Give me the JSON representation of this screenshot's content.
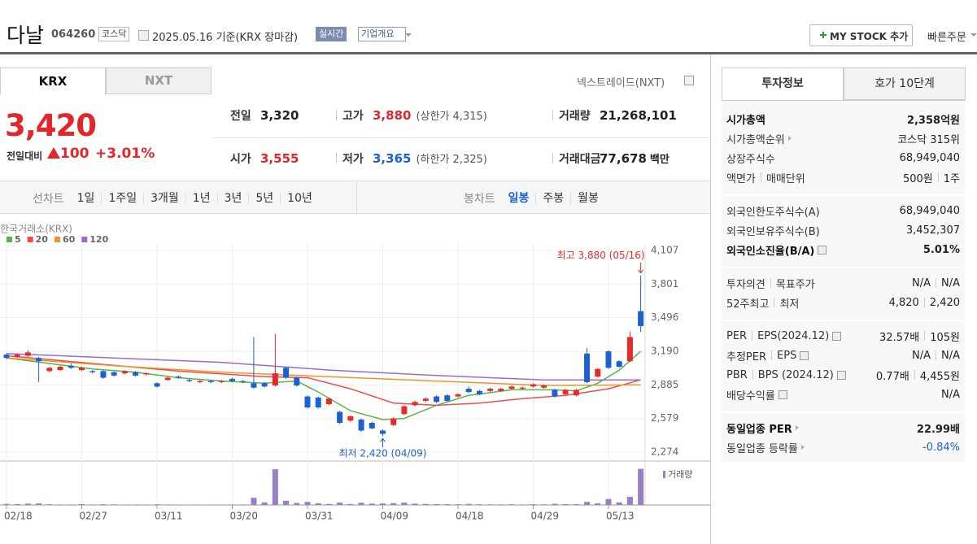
{
  "header": {
    "name": "다날",
    "code": "064260",
    "market": "코스닥",
    "date": "2025.05.16 기준(KRX 장마감)",
    "realtime": "실시간",
    "overview": "기업개요",
    "my_stock": "MY STOCK 추가",
    "quick_order": "빠른주문"
  },
  "market_tabs": [
    "KRX",
    "NXT"
  ],
  "nxt_link": "넥스트레이드(NXT)",
  "price": {
    "current": "3,420",
    "change_label": "전일대비",
    "change": "100",
    "rate": "+3.01%"
  },
  "quotes": [
    {
      "label": "전일",
      "value": "3,320"
    },
    {
      "label": "고가",
      "value": "3,880",
      "color": "#e3262a",
      "limit": "(상한가 4,315)"
    },
    {
      "label": "거래량",
      "value": "21,268,101"
    },
    {
      "label": "시가",
      "value": "3,555",
      "color": "#e3262a"
    },
    {
      "label": "저가",
      "value": "3,365",
      "color": "#1b61d1",
      "limit": "(하한가 2,325)"
    },
    {
      "label": "거래대금",
      "value": "77,678",
      "unit": "백만"
    }
  ],
  "period": {
    "line_label": "선차트",
    "line_items": [
      "1일",
      "1주일",
      "3개월",
      "1년",
      "3년",
      "5년",
      "10년"
    ],
    "candle_label": "봉차트",
    "candle_items": [
      "일봉",
      "주봉",
      "월봉"
    ]
  },
  "chart_data": {
    "type": "candlestick",
    "source": "한국거래소(KRX)",
    "categories": [
      "02/18",
      null,
      null,
      null,
      null,
      null,
      null,
      "02/27",
      null,
      null,
      null,
      null,
      null,
      null,
      "03/11",
      null,
      null,
      null,
      null,
      null,
      null,
      "03/20",
      null,
      null,
      null,
      null,
      null,
      null,
      "03/31",
      null,
      null,
      null,
      null,
      null,
      null,
      "04/09",
      null,
      null,
      null,
      null,
      null,
      null,
      "04/18",
      null,
      null,
      null,
      null,
      null,
      null,
      "04/29",
      null,
      null,
      null,
      null,
      null,
      null,
      "05/13",
      null,
      null,
      null
    ],
    "open": [
      3160,
      3140,
      3150,
      3130,
      3010,
      3020,
      3060,
      3020,
      3010,
      3010,
      3000,
      2990,
      3000,
      2980,
      2900,
      2930,
      2960,
      2930,
      2910,
      2920,
      2910,
      2940,
      2920,
      2900,
      2900,
      2880,
      3040,
      2950,
      2780,
      2770,
      2710,
      2640,
      2560,
      2570,
      2540,
      2470,
      2520,
      2620,
      2700,
      2740,
      2780,
      2790,
      2780,
      2850,
      2830,
      2830,
      2830,
      2850,
      2850,
      2870,
      2860,
      2840,
      2800,
      2790,
      3170,
      2960,
      3190,
      3100,
      3100,
      3555
    ],
    "high": [
      3170,
      3170,
      3200,
      3140,
      3050,
      3060,
      3080,
      3050,
      3020,
      3020,
      3010,
      3020,
      3010,
      3000,
      2910,
      2960,
      2970,
      2940,
      2930,
      2930,
      2930,
      2950,
      2930,
      3320,
      2910,
      3350,
      3050,
      2960,
      2790,
      2780,
      2770,
      2650,
      2610,
      2580,
      2550,
      2480,
      2590,
      2700,
      2740,
      2770,
      2790,
      2800,
      2810,
      2870,
      2840,
      2860,
      2860,
      2880,
      2870,
      2900,
      2890,
      2850,
      2850,
      2850,
      3220,
      3040,
      3200,
      3110,
      3370,
      3880
    ],
    "low": [
      3120,
      3130,
      3140,
      2910,
      3000,
      3010,
      3030,
      3010,
      2990,
      2940,
      2960,
      2980,
      2960,
      2970,
      2860,
      2920,
      2940,
      2910,
      2900,
      2900,
      2900,
      2910,
      2900,
      2850,
      2860,
      2870,
      2940,
      2870,
      2670,
      2670,
      2700,
      2530,
      2550,
      2460,
      2480,
      2420,
      2510,
      2610,
      2690,
      2730,
      2720,
      2730,
      2770,
      2810,
      2790,
      2820,
      2820,
      2840,
      2840,
      2860,
      2850,
      2770,
      2790,
      2780,
      2900,
      2950,
      3030,
      3040,
      3090,
      3365
    ],
    "close": [
      3130,
      3160,
      3180,
      3100,
      3040,
      3050,
      3040,
      3040,
      3000,
      2950,
      2970,
      3010,
      2970,
      2990,
      2870,
      2950,
      2950,
      2920,
      2920,
      2910,
      2920,
      2920,
      2910,
      2860,
      2870,
      2990,
      2950,
      2880,
      2680,
      2680,
      2760,
      2540,
      2600,
      2470,
      2490,
      2440,
      2580,
      2690,
      2730,
      2760,
      2730,
      2740,
      2800,
      2820,
      2800,
      2850,
      2850,
      2870,
      2860,
      2890,
      2880,
      2780,
      2840,
      2840,
      2910,
      3030,
      3040,
      3050,
      3320,
      3420
    ],
    "up_color": "#e52a2a",
    "down_color": "#1b61d1",
    "ylim": [
      2274,
      4107
    ],
    "yticks": [
      {
        "value": 2274,
        "label": "2,274"
      },
      {
        "value": 2579,
        "label": "2,579"
      },
      {
        "value": 2885,
        "label": "2,885"
      },
      {
        "value": 3190,
        "label": "3,190"
      },
      {
        "value": 3496,
        "label": "3,496"
      },
      {
        "value": 3801,
        "label": "3,801"
      },
      {
        "value": 4107,
        "label": "4,107"
      }
    ],
    "ma": [
      {
        "name": "5",
        "color": "#55b54a",
        "x": [
          0,
          4,
          8,
          12,
          16,
          20,
          24,
          27,
          29,
          32,
          35,
          37,
          40,
          43,
          47,
          51,
          53,
          55,
          57,
          59
        ],
        "values": [
          3130,
          3080,
          3030,
          3000,
          2950,
          2920,
          2900,
          2920,
          2820,
          2650,
          2570,
          2580,
          2700,
          2790,
          2840,
          2840,
          2830,
          2900,
          3020,
          3190
        ]
      },
      {
        "name": "20",
        "color": "#f04b4b",
        "x": [
          0,
          8,
          16,
          24,
          28,
          32,
          36,
          40,
          44,
          48,
          52,
          56,
          59
        ],
        "values": [
          3150,
          3080,
          3010,
          2960,
          2950,
          2850,
          2720,
          2700,
          2720,
          2760,
          2790,
          2850,
          2930
        ]
      },
      {
        "name": "60",
        "color": "#f0922c",
        "x": [
          0,
          10,
          20,
          30,
          40,
          50,
          59
        ],
        "values": [
          3130,
          3060,
          3000,
          2960,
          2920,
          2880,
          2885
        ]
      },
      {
        "name": "120",
        "color": "#9b6bcc",
        "x": [
          0,
          10,
          20,
          30,
          40,
          50,
          59
        ],
        "values": [
          3170,
          3130,
          3090,
          3020,
          2970,
          2930,
          2930
        ]
      }
    ],
    "volume_label": "거래량",
    "volume_color": "#9a7fc4",
    "volume_ylim": [
      0,
      22000000
    ],
    "volume": [
      600000,
      500000,
      800000,
      900000,
      400000,
      300000,
      300000,
      500000,
      300000,
      400000,
      300000,
      250000,
      300000,
      250000,
      400000,
      300000,
      250000,
      200000,
      200000,
      200000,
      250000,
      300000,
      300000,
      4200000,
      1500000,
      21000000,
      2500000,
      1200000,
      1800000,
      1000000,
      600000,
      1400000,
      600000,
      1300000,
      800000,
      900000,
      1100000,
      1400000,
      800000,
      600000,
      500000,
      500000,
      400000,
      600000,
      400000,
      350000,
      350000,
      400000,
      300000,
      400000,
      350000,
      700000,
      500000,
      500000,
      1800000,
      1000000,
      3500000,
      1500000,
      4800000,
      21268101
    ],
    "annotations": [
      {
        "text": "최고 3,880 (05/16)",
        "x": 59,
        "value": 3880,
        "color": "#e52a2a"
      },
      {
        "text": "최저 2,420 (04/09)",
        "x": 35,
        "value": 2420,
        "color": "#1b61d1"
      }
    ]
  },
  "info_tabs": [
    "투자정보",
    "호가 10단계"
  ],
  "info_groups": [
    {
      "rows": [
        {
          "label": "시가총액",
          "value": "2,358억원",
          "bold": true
        },
        {
          "label": "시가총액순위",
          "icon": "arrow",
          "value": "코스닥 315위"
        },
        {
          "label": "상장주식수",
          "value": "68,949,040"
        },
        {
          "label": "액면가",
          "label2": "매매단위",
          "value": "500원",
          "value2": "1주"
        }
      ]
    },
    {
      "rows": [
        {
          "label": "외국인한도주식수(A)",
          "value": "68,949,040"
        },
        {
          "label": "외국인보유주식수(B)",
          "value": "3,452,307"
        },
        {
          "label": "외국인소진율(B/A)",
          "icon": "help",
          "value": "5.01%",
          "bold": true
        }
      ]
    },
    {
      "rows": [
        {
          "label": "투자의견",
          "label2": "목표주가",
          "value": "N/A",
          "value2": "N/A"
        },
        {
          "label": "52주최고",
          "label2": "최저",
          "value": "4,820",
          "value2": "2,420"
        }
      ]
    },
    {
      "rows": [
        {
          "label": "PER",
          "label2": "EPS(2024.12)",
          "icon": "help",
          "value": "32.57배",
          "value2": "105원"
        },
        {
          "label": "추정PER",
          "label2": "EPS",
          "icon": "help",
          "value": "N/A",
          "value2": "N/A"
        },
        {
          "label": "PBR",
          "label2": "BPS (2024.12)",
          "icon": "help",
          "value": "0.77배",
          "value2": "4,455원"
        },
        {
          "label": "배당수익률",
          "icon": "help",
          "value": "N/A"
        }
      ]
    },
    {
      "rows": [
        {
          "label": "동일업종 PER",
          "icon": "arrow",
          "value": "22.99배",
          "bold": true
        },
        {
          "label": "동일업종 등락률",
          "icon": "arrow",
          "value": "-0.84%",
          "color": "#1b61d1"
        }
      ]
    }
  ]
}
